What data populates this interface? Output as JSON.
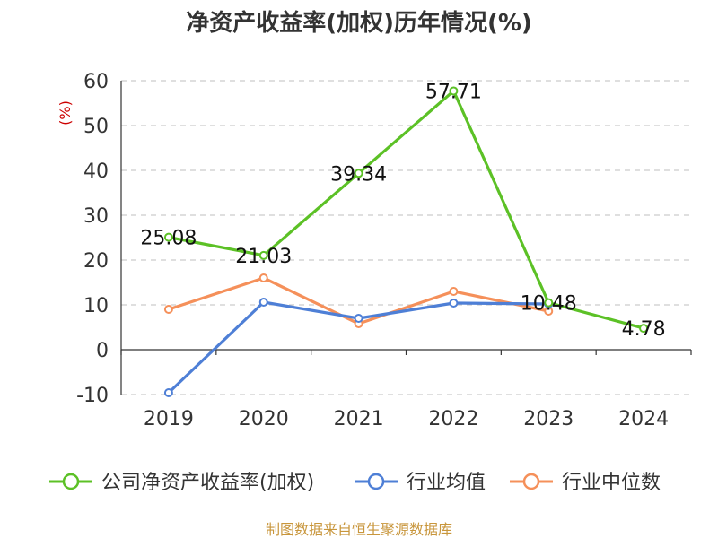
{
  "chart_data": {
    "type": "line",
    "title": "净资产收益率(加权)历年情况(%)",
    "ylabel": "(%)",
    "categories": [
      "2019",
      "2020",
      "2021",
      "2022",
      "2023",
      "2024"
    ],
    "ylim": [
      -10,
      60
    ],
    "yticks": [
      -10,
      0,
      10,
      20,
      30,
      40,
      50,
      60
    ],
    "grid": true,
    "legend_position": "bottom",
    "series": [
      {
        "name": "公司净资产收益率(加权)",
        "color": "#5cc126",
        "values": [
          25.08,
          21.03,
          39.34,
          57.71,
          10.48,
          4.78
        ],
        "labels": [
          "25.08",
          "21.03",
          "39.34",
          "57.71",
          "10.48",
          "4.78"
        ]
      },
      {
        "name": "行业均值",
        "color": "#4e7fd6",
        "values": [
          -9.6,
          10.6,
          7.0,
          10.4,
          10.2,
          null
        ]
      },
      {
        "name": "行业中位数",
        "color": "#f5905a",
        "values": [
          9.0,
          16.0,
          5.8,
          13.0,
          8.6,
          null
        ]
      }
    ]
  },
  "source": "制图数据来自恒生聚源数据库"
}
